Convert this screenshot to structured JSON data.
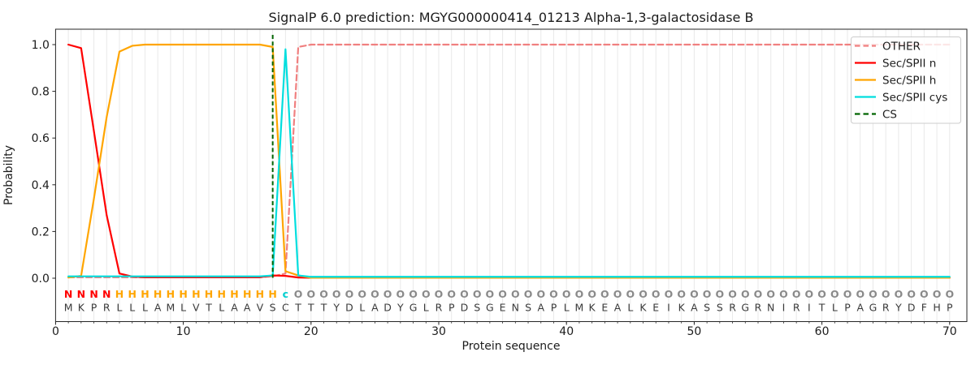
{
  "chart_data": {
    "type": "line",
    "title": "SignalP 6.0 prediction: MGYG000000414_01213 Alpha-1,3-galactosidase B",
    "xlabel": "Protein sequence",
    "ylabel": "Probability",
    "xlim": [
      0,
      71
    ],
    "ylim": [
      -0.19,
      1.07
    ],
    "x_ticks": [
      0,
      10,
      20,
      30,
      40,
      50,
      60,
      70
    ],
    "y_ticks": [
      0.0,
      0.2,
      0.4,
      0.6,
      0.8,
      1.0
    ],
    "grid": true,
    "grid_color": "#e9e9e9",
    "legend_position": "upper right",
    "x_start": 1,
    "series": [
      {
        "name": "OTHER",
        "color": "#f08080",
        "dash": [
          7,
          4
        ],
        "values": [
          0.004,
          0.004,
          0.004,
          0.004,
          0.004,
          0.004,
          0.004,
          0.004,
          0.004,
          0.004,
          0.004,
          0.004,
          0.004,
          0.004,
          0.004,
          0.004,
          0.008,
          0.02,
          0.99,
          1.0,
          1.0,
          1.0,
          1.0,
          1.0,
          1.0,
          1.0,
          1.0,
          1.0,
          1.0,
          1.0,
          1.0,
          1.0,
          1.0,
          1.0,
          1.0,
          1.0,
          1.0,
          1.0,
          1.0,
          1.0,
          1.0,
          1.0,
          1.0,
          1.0,
          1.0,
          1.0,
          1.0,
          1.0,
          1.0,
          1.0,
          1.0,
          1.0,
          1.0,
          1.0,
          1.0,
          1.0,
          1.0,
          1.0,
          1.0,
          1.0,
          1.0,
          1.0,
          1.0,
          1.0,
          1.0,
          1.0,
          1.0,
          1.0,
          1.0,
          1.0
        ]
      },
      {
        "name": "Sec/SPII n",
        "color": "#ff0000",
        "dash": null,
        "values": [
          1.0,
          0.985,
          0.63,
          0.27,
          0.02,
          0.007,
          0.004,
          0.004,
          0.004,
          0.004,
          0.004,
          0.004,
          0.004,
          0.004,
          0.004,
          0.004,
          0.012,
          0.01,
          0.003,
          0.002,
          0.002,
          0.002,
          0.002,
          0.002,
          0.002,
          0.002,
          0.002,
          0.002,
          0.002,
          0.002,
          0.002,
          0.002,
          0.002,
          0.002,
          0.002,
          0.002,
          0.002,
          0.002,
          0.002,
          0.002,
          0.002,
          0.002,
          0.002,
          0.002,
          0.002,
          0.002,
          0.002,
          0.002,
          0.002,
          0.002,
          0.002,
          0.002,
          0.002,
          0.002,
          0.002,
          0.002,
          0.002,
          0.002,
          0.002,
          0.002,
          0.002,
          0.002,
          0.002,
          0.002,
          0.002,
          0.002,
          0.002,
          0.002,
          0.002,
          0.002
        ]
      },
      {
        "name": "Sec/SPII h",
        "color": "#ffa500",
        "dash": null,
        "values": [
          0.003,
          0.01,
          0.34,
          0.69,
          0.97,
          0.995,
          1.0,
          1.0,
          1.0,
          1.0,
          1.0,
          1.0,
          1.0,
          1.0,
          1.0,
          1.0,
          0.99,
          0.03,
          0.012,
          0.002,
          0.002,
          0.002,
          0.002,
          0.002,
          0.002,
          0.002,
          0.002,
          0.002,
          0.002,
          0.002,
          0.002,
          0.002,
          0.002,
          0.002,
          0.002,
          0.002,
          0.002,
          0.002,
          0.002,
          0.002,
          0.002,
          0.002,
          0.002,
          0.002,
          0.002,
          0.002,
          0.002,
          0.002,
          0.002,
          0.002,
          0.002,
          0.002,
          0.002,
          0.002,
          0.002,
          0.002,
          0.002,
          0.002,
          0.002,
          0.002,
          0.002,
          0.002,
          0.002,
          0.002,
          0.002,
          0.002,
          0.002,
          0.002,
          0.002,
          0.002
        ]
      },
      {
        "name": "Sec/SPII cys",
        "color": "#00dede",
        "dash": null,
        "values": [
          0.008,
          0.008,
          0.008,
          0.008,
          0.008,
          0.008,
          0.008,
          0.008,
          0.008,
          0.008,
          0.008,
          0.008,
          0.008,
          0.008,
          0.008,
          0.008,
          0.012,
          0.98,
          0.012,
          0.006,
          0.006,
          0.006,
          0.006,
          0.006,
          0.006,
          0.006,
          0.006,
          0.006,
          0.006,
          0.006,
          0.006,
          0.006,
          0.006,
          0.006,
          0.006,
          0.006,
          0.006,
          0.006,
          0.006,
          0.006,
          0.006,
          0.006,
          0.006,
          0.006,
          0.006,
          0.006,
          0.006,
          0.006,
          0.006,
          0.006,
          0.006,
          0.006,
          0.006,
          0.006,
          0.006,
          0.006,
          0.006,
          0.006,
          0.006,
          0.006,
          0.006,
          0.006,
          0.006,
          0.006,
          0.006,
          0.006,
          0.006,
          0.006,
          0.006,
          0.006
        ]
      },
      {
        "name": "CS",
        "color": "#006400",
        "dash": [
          5,
          3.2
        ],
        "type": "vline",
        "x": 17
      }
    ],
    "annotations": {
      "region_labels": "NNNNHHHHHHHHHHHHHcOOOOOOOOOOOOOOOOOOOOOOOOOOOOOOOOOOOOOOOOOOOOOOOOOOOO",
      "region_colors": {
        "N": "#ff0000",
        "H": "#ffa500",
        "c": "#00cfcf",
        "O": "#8a8a8a"
      },
      "sequence": "MKPRLLLAMLVTLAAVSCTTTYDLADYGLRPDSGENSAPLMKEALKEIKASSRGRNIRITLPAGRYDFHP",
      "sequence_color": "#3a3a3a"
    }
  }
}
